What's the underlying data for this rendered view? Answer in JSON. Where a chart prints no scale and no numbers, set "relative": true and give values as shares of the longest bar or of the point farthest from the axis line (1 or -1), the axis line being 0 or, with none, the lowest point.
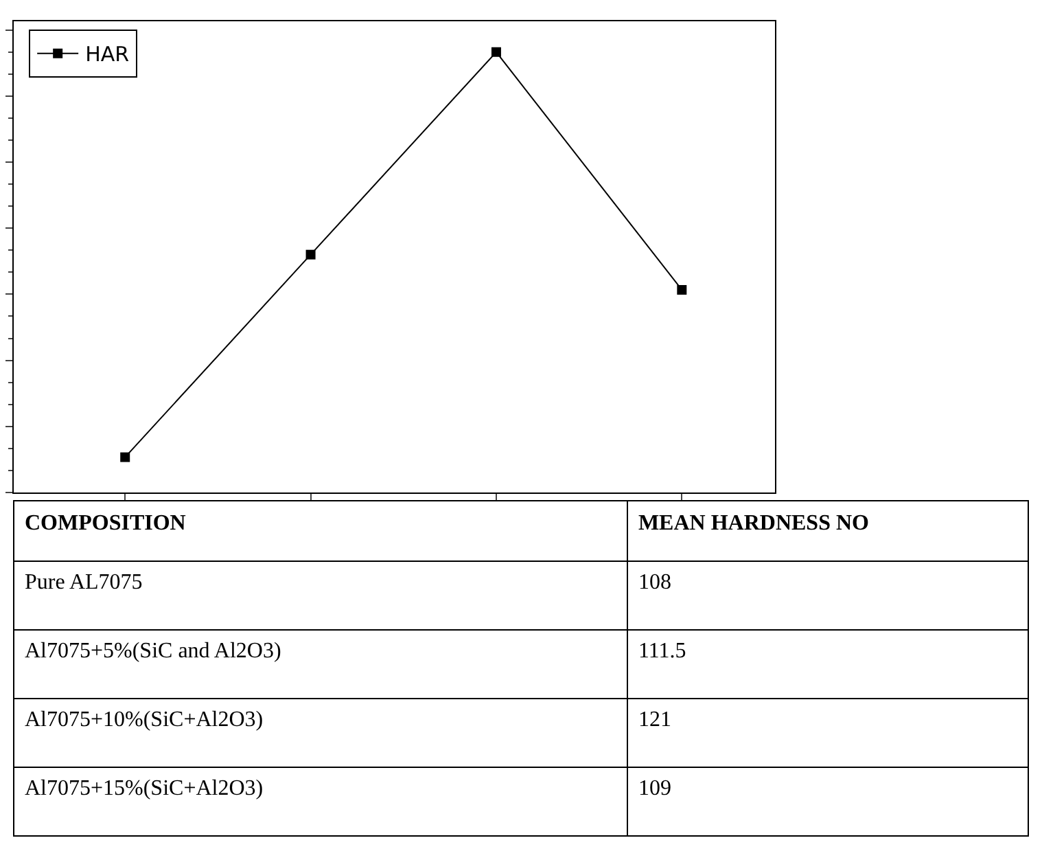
{
  "chart_data": [
    {
      "type": "line",
      "relative": true,
      "categories": [
        null,
        null,
        null,
        null
      ],
      "series": [
        {
          "name": "HAR",
          "color": "#000000",
          "values": [
            0.08,
            0.54,
            1,
            0.46
          ]
        }
      ],
      "marker": "square",
      "line_style": "solid",
      "legend": "top left"
    },
    {
      "type": "other",
      "annotations": [
        "COMPOSITION",
        "MEAN HARDNESS NO",
        "Pure AL7075",
        "108",
        "Al7075+5%(SiC and Al2O3)",
        "111.5",
        "Al7075+10%(SiC+Al2O3)",
        "121",
        "Al7075+15%(SiC+Al2O3)",
        "109"
      ]
    }
  ]
}
